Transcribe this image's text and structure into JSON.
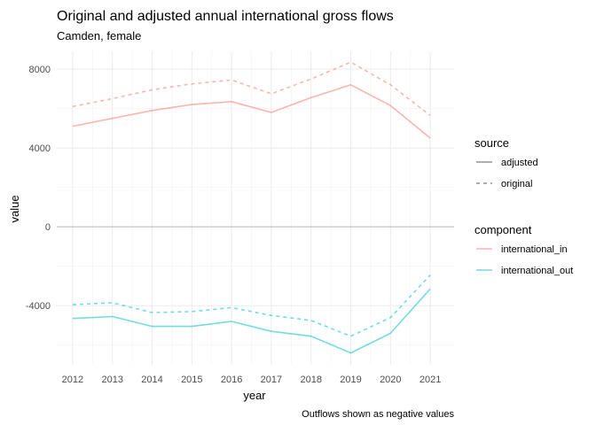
{
  "chart_data": {
    "type": "line",
    "title": "Original and adjusted annual international gross flows",
    "subtitle": "Camden, female",
    "caption": "Outflows shown as negative values",
    "xlabel": "year",
    "ylabel": "value",
    "x": [
      2012,
      2013,
      2014,
      2015,
      2016,
      2017,
      2018,
      2019,
      2020,
      2021
    ],
    "x_ticks": [
      "2012",
      "2013",
      "2014",
      "2015",
      "2016",
      "2017",
      "2018",
      "2019",
      "2020",
      "2021"
    ],
    "y_ticks": [
      "-4000",
      "0",
      "4000",
      "8000"
    ],
    "y_tick_values": [
      -4000,
      0,
      4000,
      8000
    ],
    "xlim": [
      2011.6,
      2021.6
    ],
    "ylim": [
      -7000,
      8900
    ],
    "grid": true,
    "legend_position": "right",
    "legends": [
      {
        "title": "source",
        "items": [
          {
            "label": "adjusted",
            "dash": "solid"
          },
          {
            "label": "original",
            "dash": "dashed"
          }
        ]
      },
      {
        "title": "component",
        "items": [
          {
            "label": "international_in",
            "color": "#F8766D"
          },
          {
            "label": "international_out",
            "color": "#00BFC4"
          }
        ]
      }
    ],
    "series": [
      {
        "component": "international_in",
        "source": "adjusted",
        "color": "#F8766D",
        "dash": "solid",
        "values": [
          5100,
          5500,
          5900,
          6200,
          6350,
          5800,
          6550,
          7200,
          6150,
          4500
        ]
      },
      {
        "component": "international_in",
        "source": "original",
        "color": "#F8766D",
        "dash": "dashed",
        "values": [
          6100,
          6500,
          6950,
          7250,
          7450,
          6750,
          7500,
          8350,
          7200,
          5650
        ]
      },
      {
        "component": "international_out",
        "source": "adjusted",
        "color": "#00BFC4",
        "dash": "solid",
        "values": [
          -4650,
          -4550,
          -5050,
          -5050,
          -4800,
          -5300,
          -5550,
          -6400,
          -5400,
          -3150
        ]
      },
      {
        "component": "international_out",
        "source": "original",
        "color": "#00BFC4",
        "dash": "dashed",
        "values": [
          -3950,
          -3850,
          -4350,
          -4300,
          -4100,
          -4500,
          -4750,
          -5550,
          -4600,
          -2450
        ]
      }
    ],
    "reference_line": {
      "y": 0,
      "color": "#bbbbbb"
    }
  }
}
